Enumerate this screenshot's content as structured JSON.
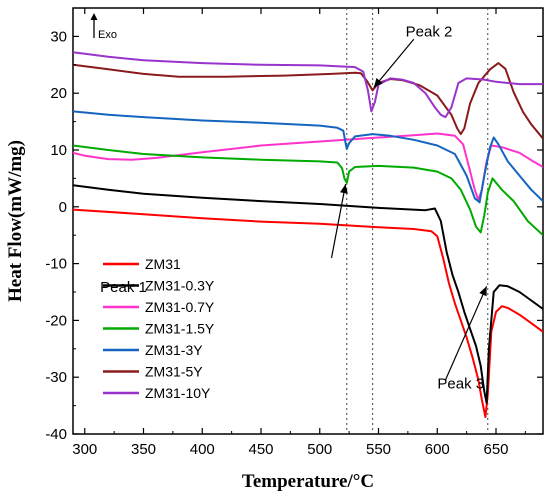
{
  "chart_data": {
    "type": "line",
    "xlabel": "Temperature/°C",
    "ylabel": "Heat Flow(mW/mg)",
    "xlim": [
      290,
      690
    ],
    "ylim": [
      -40,
      35
    ],
    "xticks": [
      300,
      350,
      400,
      450,
      500,
      550,
      600,
      650
    ],
    "yticks": [
      -40,
      -30,
      -20,
      -10,
      0,
      10,
      20,
      30
    ],
    "xtick_labels": [
      "300",
      "350",
      "400",
      "450",
      "500",
      "550",
      "600",
      "650"
    ],
    "ytick_labels": [
      "-40",
      "-30",
      "-20",
      "-10",
      "0",
      "10",
      "20",
      "30"
    ],
    "grid": false,
    "legend_position": "lower-left",
    "exo_label": "Exo",
    "reference_lines_x": [
      523,
      545,
      643
    ],
    "annotations": [
      {
        "text": "Peak 1",
        "text_at": [
          333,
          -15
        ],
        "arrow_from": [
          510,
          -9
        ],
        "arrow_to": [
          522,
          4
        ]
      },
      {
        "text": "Peak 2",
        "text_at": [
          593,
          30
        ],
        "arrow_from": [
          580,
          29.5
        ],
        "arrow_to": [
          546,
          21
        ]
      },
      {
        "text": "Peak 3",
        "text_at": [
          620,
          -32
        ],
        "arrow_from": [
          607,
          -30.5
        ],
        "arrow_to": [
          642,
          -14
        ]
      }
    ],
    "series": [
      {
        "name": "ZM31",
        "color": "#ff0000",
        "points": [
          [
            290,
            -0.5
          ],
          [
            350,
            -1.3
          ],
          [
            400,
            -2.0
          ],
          [
            450,
            -2.6
          ],
          [
            500,
            -3.0
          ],
          [
            550,
            -3.6
          ],
          [
            580,
            -3.9
          ],
          [
            595,
            -4.3
          ],
          [
            600,
            -5.2
          ],
          [
            605,
            -9
          ],
          [
            610,
            -13.5
          ],
          [
            615,
            -17
          ],
          [
            620,
            -20
          ],
          [
            625,
            -23
          ],
          [
            630,
            -26.5
          ],
          [
            635,
            -30.5
          ],
          [
            638,
            -34
          ],
          [
            641,
            -37
          ],
          [
            643,
            -33
          ],
          [
            646,
            -22
          ],
          [
            650,
            -18.5
          ],
          [
            655,
            -17.5
          ],
          [
            660,
            -17.8
          ],
          [
            670,
            -19
          ],
          [
            680,
            -20.5
          ],
          [
            690,
            -22
          ]
        ]
      },
      {
        "name": "ZM31-0.3Y",
        "color": "#000000",
        "points": [
          [
            290,
            3.8
          ],
          [
            320,
            3.0
          ],
          [
            350,
            2.3
          ],
          [
            400,
            1.6
          ],
          [
            450,
            1.0
          ],
          [
            500,
            0.5
          ],
          [
            550,
            -0.2
          ],
          [
            590,
            -0.6
          ],
          [
            598,
            -0.3
          ],
          [
            603,
            -2.5
          ],
          [
            608,
            -8
          ],
          [
            613,
            -12
          ],
          [
            618,
            -15
          ],
          [
            623,
            -18.5
          ],
          [
            628,
            -21.5
          ],
          [
            633,
            -24.5
          ],
          [
            637,
            -28
          ],
          [
            640,
            -32.5
          ],
          [
            642,
            -34.5
          ],
          [
            644,
            -25
          ],
          [
            648,
            -15
          ],
          [
            653,
            -13.8
          ],
          [
            660,
            -14
          ],
          [
            670,
            -15
          ],
          [
            680,
            -16.5
          ],
          [
            690,
            -18
          ]
        ]
      },
      {
        "name": "ZM31-0.7Y",
        "color": "#ff33cc",
        "points": [
          [
            290,
            9.5
          ],
          [
            300,
            9.0
          ],
          [
            320,
            8.4
          ],
          [
            340,
            8.3
          ],
          [
            360,
            8.6
          ],
          [
            400,
            9.6
          ],
          [
            450,
            10.8
          ],
          [
            500,
            11.5
          ],
          [
            550,
            12.2
          ],
          [
            580,
            12.6
          ],
          [
            600,
            12.9
          ],
          [
            615,
            12.5
          ],
          [
            622,
            11
          ],
          [
            627,
            7
          ],
          [
            632,
            3
          ],
          [
            635,
            1.2
          ],
          [
            638,
            3
          ],
          [
            642,
            8
          ],
          [
            646,
            10.8
          ],
          [
            655,
            10.5
          ],
          [
            670,
            9.5
          ],
          [
            680,
            8.2
          ],
          [
            690,
            7
          ]
        ]
      },
      {
        "name": "ZM31-1.5Y",
        "color": "#00aa00",
        "points": [
          [
            290,
            10.8
          ],
          [
            320,
            10.0
          ],
          [
            350,
            9.3
          ],
          [
            400,
            8.7
          ],
          [
            450,
            8.3
          ],
          [
            500,
            8.0
          ],
          [
            515,
            7.8
          ],
          [
            519,
            6.8
          ],
          [
            521,
            5.0
          ],
          [
            523,
            4.2
          ],
          [
            525,
            6.2
          ],
          [
            530,
            7.0
          ],
          [
            550,
            7.2
          ],
          [
            580,
            6.9
          ],
          [
            600,
            6.2
          ],
          [
            612,
            5.0
          ],
          [
            620,
            3.0
          ],
          [
            628,
            -0.5
          ],
          [
            633,
            -3.5
          ],
          [
            637,
            -4.5
          ],
          [
            640,
            -1.5
          ],
          [
            643,
            2.5
          ],
          [
            647,
            5.0
          ],
          [
            655,
            3
          ],
          [
            665,
            1
          ],
          [
            677,
            -2.5
          ],
          [
            690,
            -5
          ]
        ]
      },
      {
        "name": "ZM31-3Y",
        "color": "#1565c0",
        "points": [
          [
            290,
            16.8
          ],
          [
            320,
            16.2
          ],
          [
            350,
            15.8
          ],
          [
            400,
            15.2
          ],
          [
            450,
            14.8
          ],
          [
            500,
            14.3
          ],
          [
            515,
            13.9
          ],
          [
            520,
            13.4
          ],
          [
            522,
            11.2
          ],
          [
            523,
            10.2
          ],
          [
            525,
            11.2
          ],
          [
            530,
            12.4
          ],
          [
            545,
            12.8
          ],
          [
            560,
            12.5
          ],
          [
            580,
            11.8
          ],
          [
            600,
            10.8
          ],
          [
            615,
            9.3
          ],
          [
            625,
            5.5
          ],
          [
            632,
            1.5
          ],
          [
            636,
            0.8
          ],
          [
            640,
            5.5
          ],
          [
            645,
            10.5
          ],
          [
            648,
            12.2
          ],
          [
            652,
            11
          ],
          [
            660,
            8
          ],
          [
            670,
            5.5
          ],
          [
            680,
            3
          ],
          [
            690,
            1
          ]
        ]
      },
      {
        "name": "ZM31-5Y",
        "color": "#8b1a1a",
        "points": [
          [
            290,
            25.0
          ],
          [
            320,
            24.2
          ],
          [
            350,
            23.4
          ],
          [
            380,
            22.9
          ],
          [
            420,
            22.9
          ],
          [
            470,
            23.1
          ],
          [
            510,
            23.4
          ],
          [
            530,
            23.6
          ],
          [
            535,
            23.5
          ],
          [
            540,
            22.2
          ],
          [
            545,
            20.5
          ],
          [
            550,
            21.8
          ],
          [
            560,
            22.5
          ],
          [
            570,
            22.3
          ],
          [
            585,
            21.4
          ],
          [
            600,
            19.6
          ],
          [
            612,
            16.2
          ],
          [
            617,
            13.8
          ],
          [
            620,
            12.8
          ],
          [
            623,
            13.8
          ],
          [
            628,
            18.2
          ],
          [
            635,
            21.8
          ],
          [
            645,
            24.2
          ],
          [
            652,
            25.3
          ],
          [
            658,
            24.3
          ],
          [
            665,
            20.2
          ],
          [
            673,
            16.7
          ],
          [
            680,
            14.5
          ],
          [
            690,
            12
          ]
        ]
      },
      {
        "name": "ZM31-10Y",
        "color": "#9933cc",
        "points": [
          [
            290,
            27.2
          ],
          [
            320,
            26.4
          ],
          [
            350,
            25.8
          ],
          [
            400,
            25.3
          ],
          [
            450,
            25.0
          ],
          [
            500,
            24.9
          ],
          [
            530,
            24.6
          ],
          [
            537,
            23.8
          ],
          [
            541,
            20.5
          ],
          [
            544,
            16.8
          ],
          [
            547,
            18.5
          ],
          [
            550,
            21.5
          ],
          [
            560,
            22.6
          ],
          [
            570,
            22.4
          ],
          [
            580,
            21.8
          ],
          [
            590,
            20.0
          ],
          [
            598,
            17.5
          ],
          [
            603,
            16.2
          ],
          [
            607,
            15.8
          ],
          [
            612,
            17.5
          ],
          [
            618,
            21.8
          ],
          [
            625,
            22.6
          ],
          [
            640,
            22.4
          ],
          [
            650,
            22.0
          ],
          [
            670,
            21.6
          ],
          [
            690,
            21.6
          ]
        ]
      }
    ]
  }
}
